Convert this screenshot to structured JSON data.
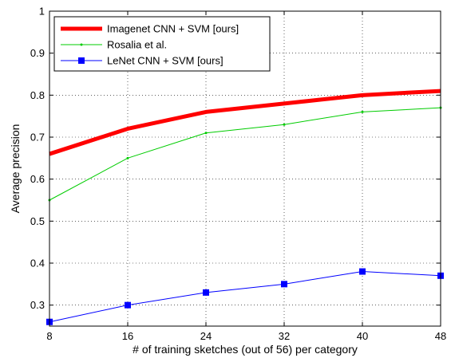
{
  "chart_data": {
    "type": "line",
    "xlabel": "# of training sketches (out of 56) per category",
    "ylabel": "Average precision",
    "x": [
      8,
      16,
      24,
      32,
      40,
      48
    ],
    "xlim": [
      8,
      48
    ],
    "ylim": [
      0.25,
      1.0
    ],
    "xticks": [
      "8",
      "16",
      "24",
      "32",
      "40",
      "48"
    ],
    "yticks": [
      "0.3",
      "0.4",
      "0.5",
      "0.6",
      "0.7",
      "0.8",
      "0.9",
      "1"
    ],
    "grid": true,
    "legend_position": "top-left",
    "series": [
      {
        "name": "Imagenet CNN + SVM [ours]",
        "values": [
          0.66,
          0.72,
          0.76,
          0.78,
          0.8,
          0.81
        ],
        "color": "#ff0000",
        "marker": "none"
      },
      {
        "name": "Rosalia et al.",
        "values": [
          0.55,
          0.65,
          0.71,
          0.73,
          0.76,
          0.77
        ],
        "color": "#00cc00",
        "marker": "dot"
      },
      {
        "name": "LeNet CNN + SVM [ours]",
        "values": [
          0.26,
          0.3,
          0.33,
          0.35,
          0.38,
          0.37
        ],
        "color": "#0000ff",
        "marker": "square"
      }
    ]
  }
}
